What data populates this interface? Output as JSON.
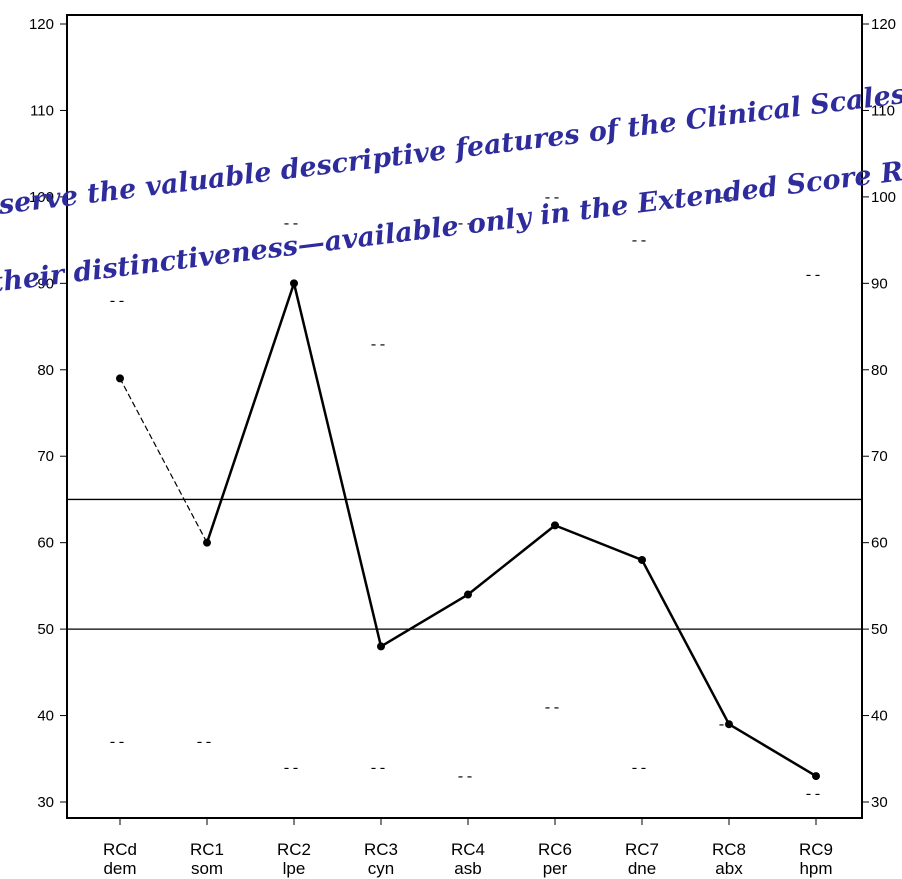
{
  "chart_data": {
    "type": "line",
    "categories": [
      {
        "code": "RCd",
        "abbr": "dem"
      },
      {
        "code": "RC1",
        "abbr": "som"
      },
      {
        "code": "RC2",
        "abbr": "lpe"
      },
      {
        "code": "RC3",
        "abbr": "cyn"
      },
      {
        "code": "RC4",
        "abbr": "asb"
      },
      {
        "code": "RC6",
        "abbr": "per"
      },
      {
        "code": "RC7",
        "abbr": "dne"
      },
      {
        "code": "RC8",
        "abbr": "abx"
      },
      {
        "code": "RC9",
        "abbr": "hpm"
      }
    ],
    "values": [
      79,
      60,
      90,
      48,
      54,
      62,
      58,
      39,
      33
    ],
    "dashed_segments": [
      0
    ],
    "range_markers": [
      {
        "upper": 88,
        "lower": 37
      },
      {
        "upper": null,
        "lower": 37
      },
      {
        "upper": 97,
        "lower": 34
      },
      {
        "upper": 83,
        "lower": 34
      },
      {
        "upper": 97,
        "lower": 33
      },
      {
        "upper": 100,
        "lower": 41
      },
      {
        "upper": 95,
        "lower": 34
      },
      {
        "upper": 100,
        "lower": 39
      },
      {
        "upper": 91,
        "lower": 31
      }
    ],
    "marker_glyph": "--",
    "reference_lines": [
      65,
      50
    ],
    "ylim": [
      30,
      120
    ],
    "yticks": [
      30,
      40,
      50,
      60,
      70,
      80,
      90,
      100,
      110,
      120
    ],
    "title": "",
    "xlabel": "",
    "ylabel": "",
    "grid": false,
    "line_color": "#000000"
  },
  "watermark": {
    "line1": "serve the valuable descriptive features of the Clinical Scales",
    "line2": "their distinctiveness—available only in the Extended Score Repor",
    "color": "#2e2c9c"
  }
}
